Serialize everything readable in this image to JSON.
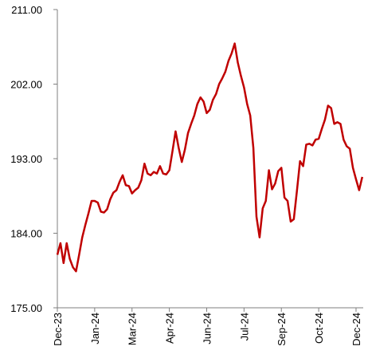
{
  "chart_data": {
    "type": "line",
    "categories": [
      "Dec-23",
      null,
      null,
      null,
      null,
      null,
      null,
      null,
      null,
      null,
      null,
      null,
      "Jan-24",
      null,
      null,
      null,
      null,
      null,
      null,
      null,
      null,
      null,
      null,
      null,
      "Mar-24",
      null,
      null,
      null,
      null,
      null,
      null,
      null,
      null,
      null,
      null,
      null,
      "Apr-24",
      null,
      null,
      null,
      null,
      null,
      null,
      null,
      null,
      null,
      null,
      null,
      "Jun-24",
      null,
      null,
      null,
      null,
      null,
      null,
      null,
      null,
      null,
      null,
      null,
      "Jul-24",
      null,
      null,
      null,
      null,
      null,
      null,
      null,
      null,
      null,
      null,
      null,
      "Sep-24",
      null,
      null,
      null,
      null,
      null,
      null,
      null,
      null,
      null,
      null,
      null,
      "Oct-24",
      null,
      null,
      null,
      null,
      null,
      null,
      null,
      null,
      null,
      null,
      null,
      "Dec-24",
      null,
      null
    ],
    "series": [
      {
        "color": "#c00000",
        "values": [
          181.4,
          182.8,
          180.4,
          182.8,
          180.9,
          179.9,
          179.4,
          181.4,
          183.5,
          185.0,
          186.4,
          187.9,
          187.9,
          187.7,
          186.6,
          186.5,
          186.9,
          188.1,
          188.9,
          189.2,
          190.2,
          191.0,
          189.8,
          189.7,
          188.8,
          189.2,
          189.5,
          190.4,
          192.4,
          191.2,
          191.0,
          191.4,
          191.2,
          192.1,
          191.2,
          191.1,
          191.6,
          193.9,
          196.3,
          194.3,
          192.6,
          194.1,
          196.1,
          197.2,
          198.2,
          199.6,
          200.4,
          199.9,
          198.5,
          198.9,
          200.1,
          200.8,
          202.0,
          202.7,
          203.5,
          204.8,
          205.7,
          206.9,
          204.6,
          203.0,
          201.6,
          199.6,
          198.2,
          194.3,
          186.0,
          183.5,
          187.0,
          187.9,
          191.6,
          189.3,
          190.0,
          191.5,
          191.9,
          188.3,
          187.9,
          185.4,
          185.7,
          189.1,
          192.7,
          192.1,
          194.7,
          194.8,
          194.6,
          195.3,
          195.4,
          196.6,
          197.7,
          199.4,
          199.1,
          197.2,
          197.4,
          197.2,
          195.3,
          194.5,
          194.2,
          191.9,
          190.5,
          189.2,
          190.8
        ]
      }
    ],
    "ylim": [
      175,
      211
    ],
    "yticks": [
      {
        "value": 175,
        "label": "175.00"
      },
      {
        "value": 184,
        "label": "184.00"
      },
      {
        "value": 193,
        "label": "193.00"
      },
      {
        "value": 202,
        "label": "202.00"
      },
      {
        "value": 211,
        "label": "211.00"
      }
    ],
    "grid": false
  }
}
